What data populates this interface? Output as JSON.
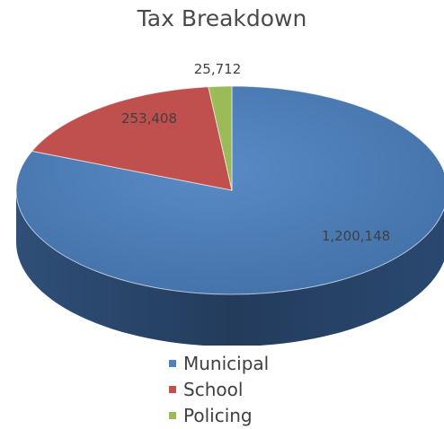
{
  "chart_data": {
    "type": "pie",
    "title": "Tax Breakdown",
    "categories": [
      "Municipal",
      "School",
      "Policing"
    ],
    "values": [
      1200148,
      253408,
      25712
    ],
    "value_labels": [
      "1,200,148",
      "253,408",
      "25,712"
    ],
    "colors": [
      "#4f81bd",
      "#c0504d",
      "#9bbb59"
    ],
    "legend_position": "bottom",
    "style": "3d"
  }
}
